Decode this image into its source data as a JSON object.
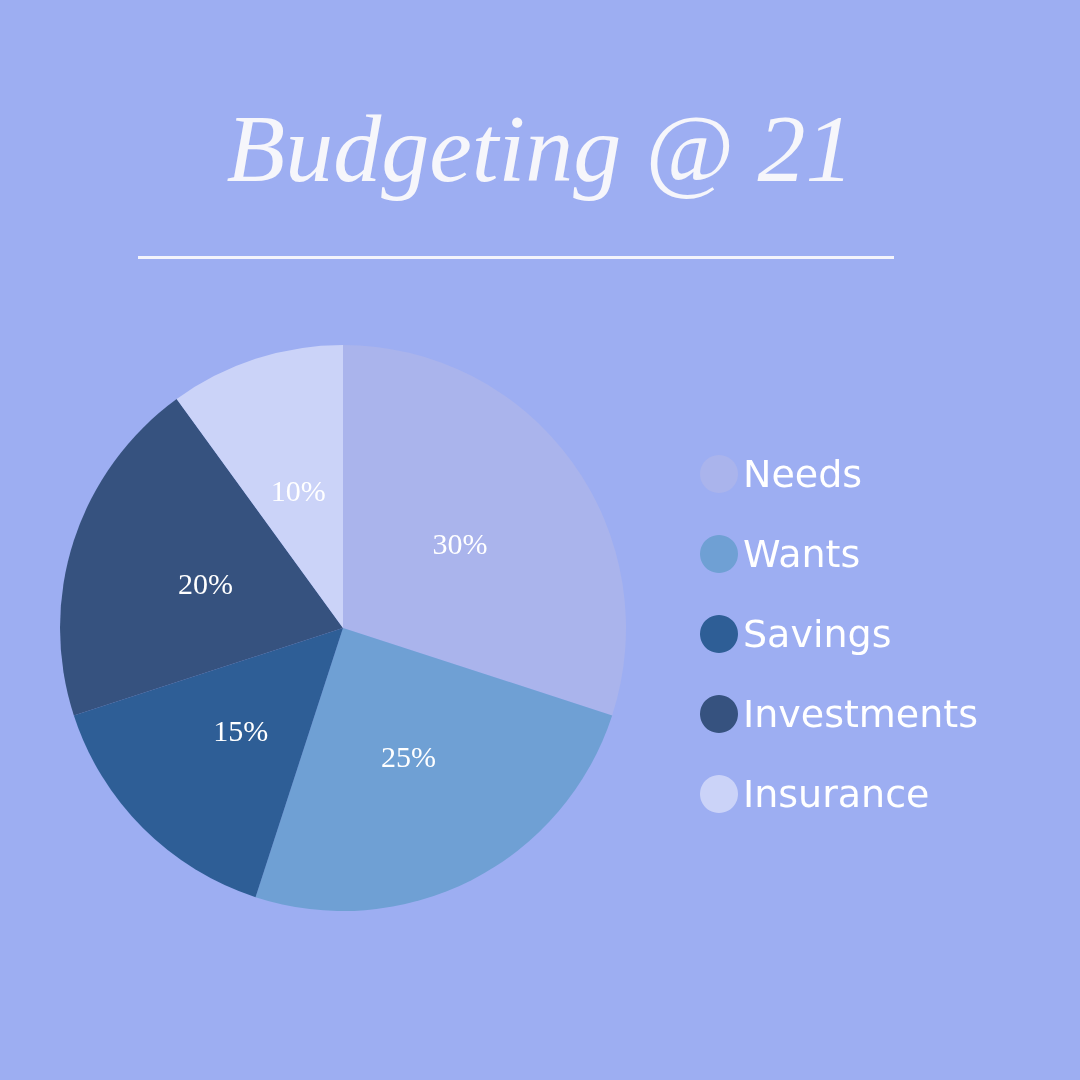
{
  "chart_data": {
    "type": "pie",
    "title": "Budgeting @ 21",
    "categories": [
      "Needs",
      "Wants",
      "Savings",
      "Investments",
      "Insurance"
    ],
    "values": [
      30,
      25,
      15,
      20,
      10
    ],
    "colors": [
      "#aab4ec",
      "#6fa0d4",
      "#2e5e96",
      "#36527f",
      "#cbd3f8"
    ],
    "value_labels": [
      "30%",
      "25%",
      "15%",
      "20%",
      "10%"
    ],
    "legend": "right"
  }
}
